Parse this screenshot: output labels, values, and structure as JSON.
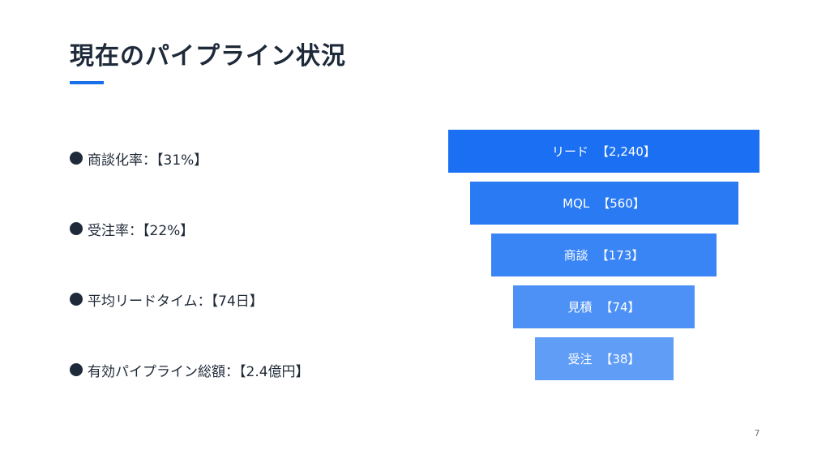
{
  "title": "現在のパイプライン状況",
  "kpis": [
    {
      "label": "商談化率：【31%】"
    },
    {
      "label": "受注率：【22%】"
    },
    {
      "label": "平均リードタイム：【74日】"
    },
    {
      "label": "有効パイプライン総額：【2.4億円】"
    }
  ],
  "chart_data": {
    "type": "bar",
    "categories": [
      "リード",
      "MQL",
      "商談",
      "見積",
      "受注"
    ],
    "values": [
      2240,
      560,
      173,
      74,
      38
    ],
    "value_labels": [
      "【2,240】",
      "【560】",
      "【173】",
      "【74】",
      "【38】"
    ],
    "colors": [
      "#1a6ff2",
      "#2a7af3",
      "#3a85f5",
      "#4d91f6",
      "#5f9df7"
    ],
    "title": "",
    "xlabel": "",
    "ylabel": ""
  },
  "page_number": "7",
  "colors": {
    "accent": "#1a6fe8",
    "title_text": "#1e2a3a",
    "bullet": "#1e2a3a"
  }
}
